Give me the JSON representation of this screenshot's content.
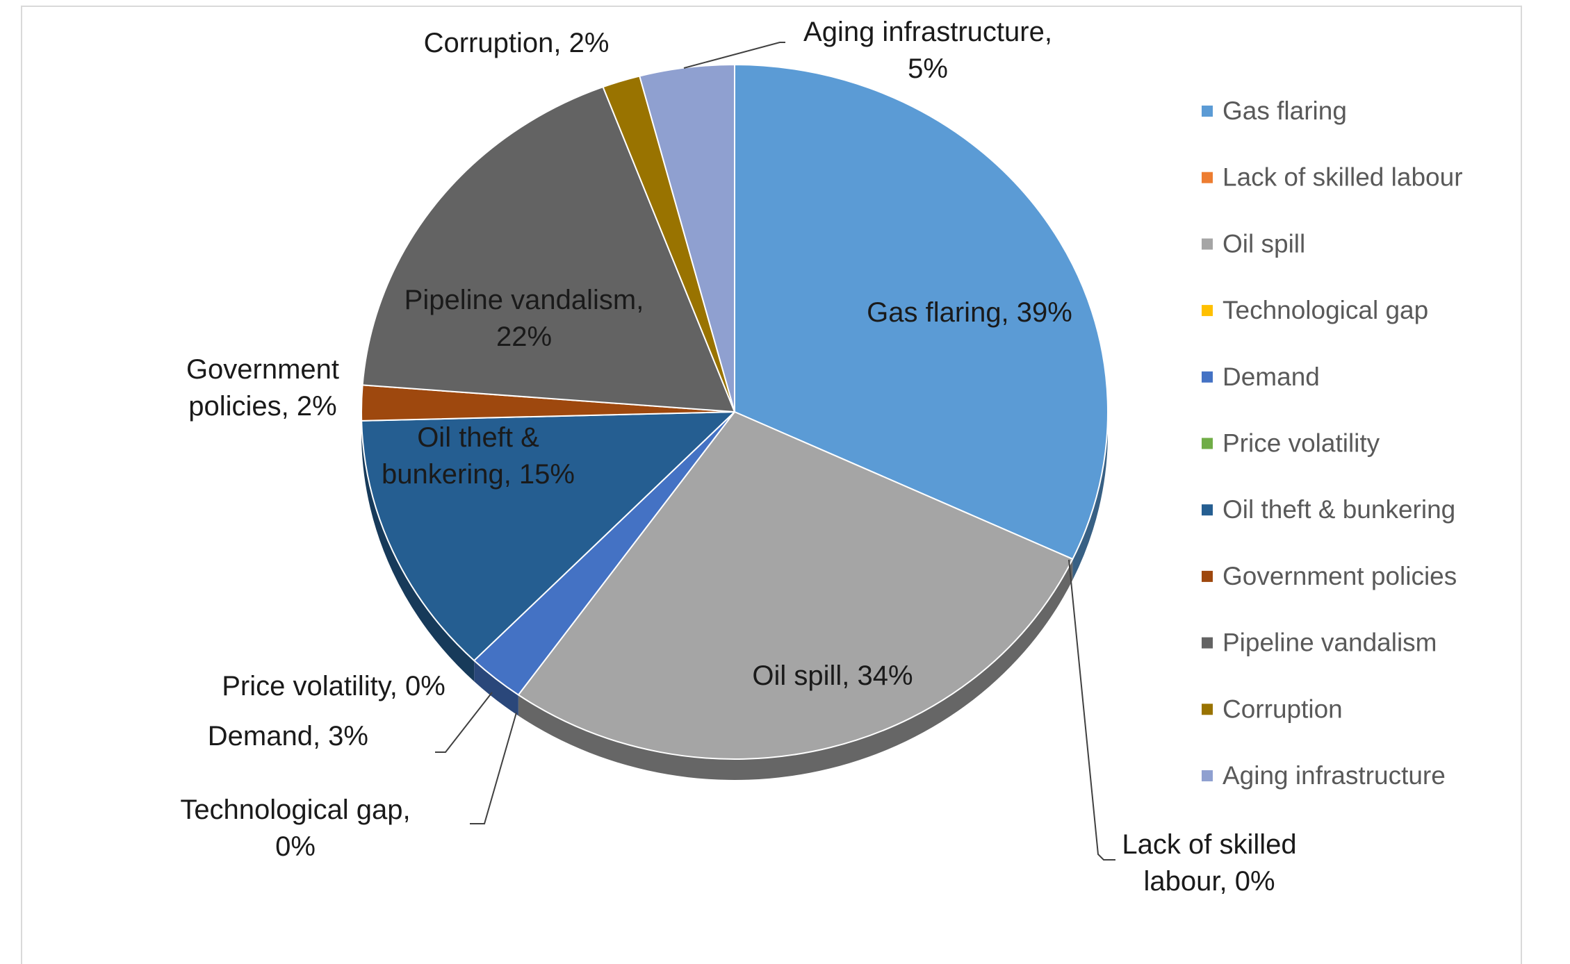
{
  "chart_data": {
    "type": "pie",
    "style": "3d-pie",
    "legend_position": "right",
    "categories": [
      "Gas flaring",
      "Lack of skilled labour",
      "Oil spill",
      "Technological gap",
      "Demand",
      "Price volatility",
      "Oil theft & bunkering",
      "Government policies",
      "Pipeline vandalism",
      "Corruption",
      "Aging infrastructure"
    ],
    "values": [
      39,
      0,
      34,
      0,
      3,
      0,
      15,
      2,
      22,
      2,
      5
    ],
    "data_labels": [
      [
        "Gas flaring, 39%"
      ],
      [
        "Lack of skilled",
        "labour, 0%"
      ],
      [
        "Oil spill, 34%"
      ],
      [
        "Technological gap,",
        "0%"
      ],
      [
        "Demand, 3%"
      ],
      [
        "Price volatility, 0%"
      ],
      [
        "Oil theft &",
        "bunkering, 15%"
      ],
      [
        "Government",
        "policies, 2%"
      ],
      [
        "Pipeline vandalism,",
        "22%"
      ],
      [
        "Corruption, 2%"
      ],
      [
        "Aging infrastructure,",
        "5%"
      ]
    ],
    "colors": [
      "#5b9bd5",
      "#ed7d31",
      "#a5a5a5",
      "#ffc000",
      "#4472c4",
      "#70ad47",
      "#255e91",
      "#9e480e",
      "#636363",
      "#997300",
      "#8fa0d0"
    ]
  }
}
